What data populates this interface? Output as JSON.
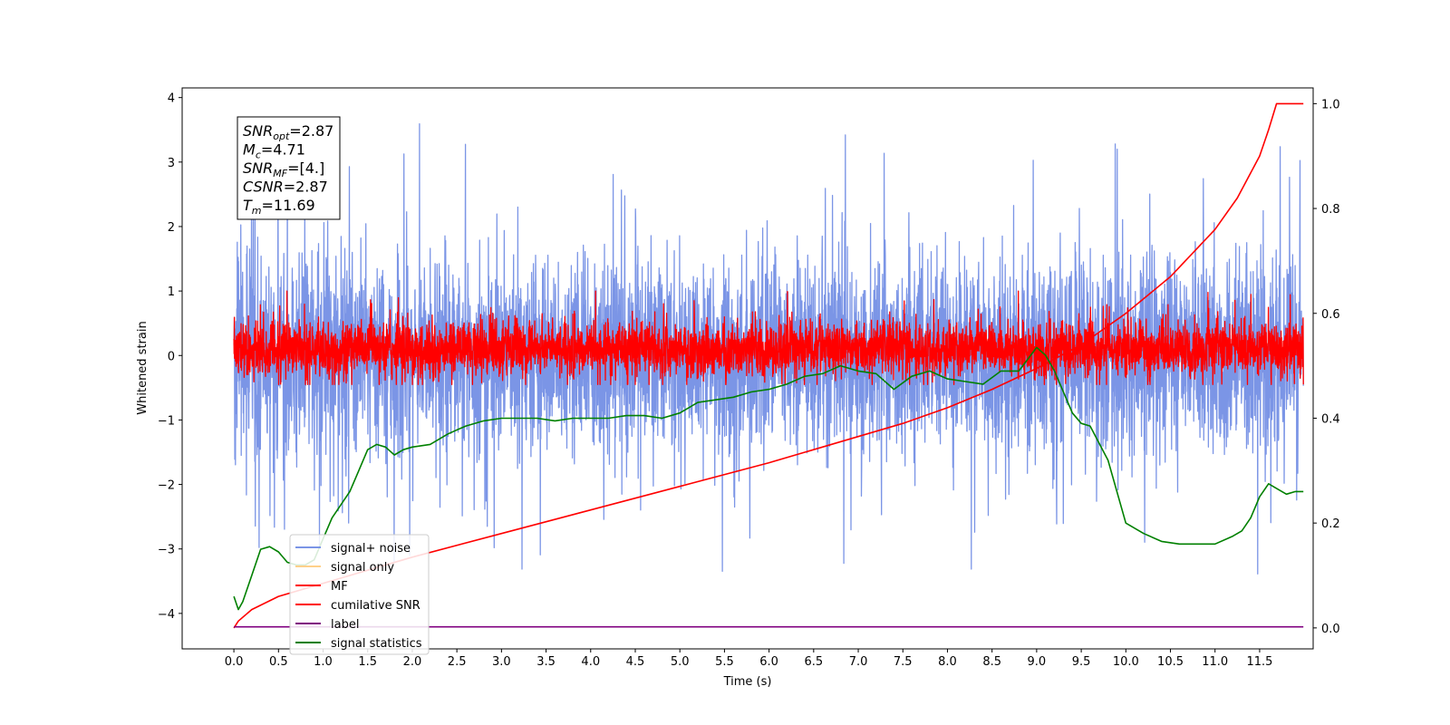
{
  "chart_data": {
    "type": "line",
    "xlabel": "Time (s)",
    "ylabel": "Whitened strain",
    "xlim": [
      -0.58,
      12.1
    ],
    "ylim": [
      -4.55,
      4.15
    ],
    "y2lim": [
      -0.04,
      1.03
    ],
    "xticks": [
      "0.0",
      "0.5",
      "1.0",
      "1.5",
      "2.0",
      "2.5",
      "3.0",
      "3.5",
      "4.0",
      "4.5",
      "5.0",
      "5.5",
      "6.0",
      "6.5",
      "7.0",
      "7.5",
      "8.0",
      "8.5",
      "9.0",
      "9.5",
      "10.0",
      "10.5",
      "11.0",
      "11.5"
    ],
    "yticks": [
      "4",
      "3",
      "2",
      "1",
      "0",
      "−1",
      "−2",
      "−3",
      "−4"
    ],
    "y2ticks": [
      "1.0",
      "0.8",
      "0.6",
      "0.4",
      "0.2",
      "0.0"
    ],
    "annotation": {
      "lines": [
        {
          "sym": "SNR",
          "sub": "opt",
          "value": "=2.87"
        },
        {
          "sym": "M",
          "sub": "c",
          "value": "=4.71"
        },
        {
          "sym": "SNR",
          "sub": "MF",
          "value": "=[4.]"
        },
        {
          "sym": "CSNR",
          "sub": "",
          "value": "=2.87"
        },
        {
          "sym": "T",
          "sub": "m",
          "value": "=11.69"
        }
      ]
    },
    "legend": {
      "placement": "lower-left",
      "entries": [
        {
          "label": "signal+ noise",
          "color": "#7b95e6"
        },
        {
          "label": "signal only",
          "color": "#ffd08a"
        },
        {
          "label": "MF",
          "color": "#ff0000"
        },
        {
          "label": "cumilative SNR",
          "color": "#ff0000"
        },
        {
          "label": "label",
          "color": "#800080"
        },
        {
          "label": "signal statistics",
          "color": "#008000"
        }
      ]
    },
    "series": [
      {
        "name": "signal+ noise",
        "axis": "left",
        "style": "noise",
        "color": "#7b95e6",
        "x_range": [
          0,
          11.99
        ],
        "envelope": [
          -1.8,
          1.8
        ],
        "spikes": [
          -3.5,
          3.8
        ]
      },
      {
        "name": "MF",
        "axis": "left",
        "style": "noise",
        "color": "#ff0000",
        "x_range": [
          0,
          11.99
        ],
        "envelope": [
          -0.4,
          0.6
        ],
        "spikes": [
          -0.45,
          1.0
        ]
      },
      {
        "name": "cumilative SNR",
        "axis": "right",
        "style": "line",
        "color": "#ff0000",
        "x": [
          0,
          0.05,
          0.2,
          0.5,
          1,
          1.5,
          2,
          3,
          4,
          5,
          6,
          7,
          7.5,
          8,
          8.5,
          9,
          9.5,
          10,
          10.5,
          11,
          11.25,
          11.5,
          11.6,
          11.69,
          11.99
        ],
        "values": [
          0.0,
          0.013,
          0.035,
          0.06,
          0.085,
          0.11,
          0.135,
          0.18,
          0.225,
          0.27,
          0.315,
          0.365,
          0.39,
          0.42,
          0.455,
          0.495,
          0.54,
          0.6,
          0.67,
          0.76,
          0.82,
          0.9,
          0.95,
          1.0,
          1.0
        ]
      },
      {
        "name": "label",
        "axis": "right",
        "style": "line",
        "color": "#800080",
        "x": [
          0,
          11.99
        ],
        "values": [
          0.002,
          0.002
        ]
      },
      {
        "name": "signal statistics",
        "axis": "right",
        "style": "line",
        "color": "#008000",
        "x": [
          0,
          0.05,
          0.1,
          0.2,
          0.3,
          0.4,
          0.5,
          0.6,
          0.7,
          0.8,
          0.9,
          1.0,
          1.1,
          1.2,
          1.3,
          1.4,
          1.5,
          1.6,
          1.7,
          1.8,
          1.9,
          2.0,
          2.2,
          2.4,
          2.6,
          2.8,
          3.0,
          3.2,
          3.4,
          3.6,
          3.8,
          4.0,
          4.2,
          4.4,
          4.6,
          4.8,
          5.0,
          5.2,
          5.4,
          5.6,
          5.8,
          6.0,
          6.2,
          6.4,
          6.6,
          6.8,
          7.0,
          7.2,
          7.4,
          7.6,
          7.8,
          8.0,
          8.2,
          8.4,
          8.6,
          8.8,
          9.0,
          9.1,
          9.2,
          9.3,
          9.4,
          9.5,
          9.6,
          9.8,
          10.0,
          10.2,
          10.4,
          10.6,
          10.8,
          11.0,
          11.2,
          11.3,
          11.4,
          11.5,
          11.6,
          11.7,
          11.8,
          11.9,
          11.99
        ],
        "values": [
          0.06,
          0.035,
          0.05,
          0.1,
          0.15,
          0.155,
          0.145,
          0.125,
          0.12,
          0.12,
          0.13,
          0.17,
          0.21,
          0.235,
          0.26,
          0.3,
          0.34,
          0.35,
          0.345,
          0.33,
          0.34,
          0.345,
          0.35,
          0.37,
          0.385,
          0.395,
          0.4,
          0.4,
          0.4,
          0.395,
          0.4,
          0.4,
          0.4,
          0.405,
          0.405,
          0.4,
          0.41,
          0.43,
          0.435,
          0.44,
          0.45,
          0.455,
          0.465,
          0.48,
          0.485,
          0.5,
          0.49,
          0.485,
          0.455,
          0.48,
          0.49,
          0.475,
          0.47,
          0.465,
          0.49,
          0.49,
          0.535,
          0.52,
          0.49,
          0.45,
          0.41,
          0.39,
          0.385,
          0.32,
          0.2,
          0.18,
          0.165,
          0.16,
          0.16,
          0.16,
          0.175,
          0.185,
          0.21,
          0.25,
          0.275,
          0.265,
          0.255,
          0.26,
          0.26
        ]
      }
    ]
  }
}
